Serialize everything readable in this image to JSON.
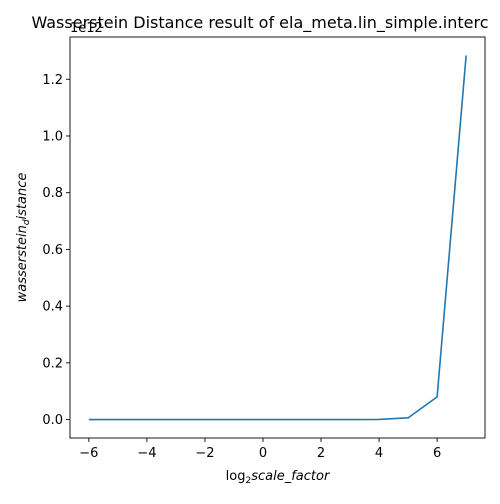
{
  "chart_data": {
    "type": "line",
    "title": "Wasserstein Distance result of ela_meta.lin_simple.interc",
    "xlabel": "log2scale_factor",
    "xlabel_parts": {
      "prefix": "log",
      "subscript": "2",
      "suffix": "scale_factor"
    },
    "ylabel": "wasserstein_distance",
    "ylabel_parts": {
      "prefix": "wasserstein",
      "subscript": "d",
      "suffix": "istance"
    },
    "y_offset_text": "1e12",
    "xlim": [
      -6.65,
      7.65
    ],
    "ylim": [
      -0.065,
      1.349
    ],
    "xticks": [
      -6,
      -4,
      -2,
      0,
      2,
      4,
      6
    ],
    "xtick_labels": [
      "−6",
      "−4",
      "−2",
      "0",
      "2",
      "4",
      "6"
    ],
    "yticks": [
      0.0,
      0.2,
      0.4,
      0.6,
      0.8,
      1.0,
      1.2
    ],
    "ytick_labels": [
      "0.0",
      "0.2",
      "0.4",
      "0.6",
      "0.8",
      "1.0",
      "1.2"
    ],
    "grid": false,
    "legend": "none",
    "series": [
      {
        "color": "#1f77b4",
        "x": [
          -6,
          -5,
          -4,
          -3,
          -2,
          -1,
          0,
          1,
          2,
          3,
          4,
          5,
          6,
          7
        ],
        "y": [
          0.0,
          0.0,
          0.0,
          0.0,
          0.0,
          0.0,
          0.0,
          0.0,
          0.0,
          0.0,
          0.0006,
          0.006,
          0.08,
          1.284
        ]
      }
    ]
  }
}
